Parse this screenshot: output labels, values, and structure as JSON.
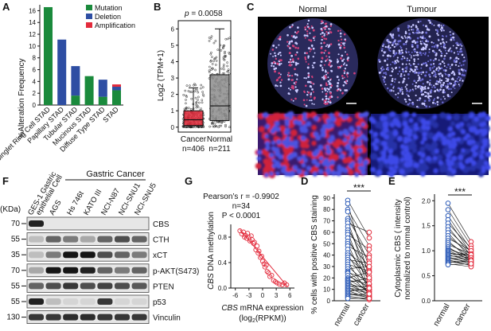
{
  "panels": {
    "A": {
      "letter": "A",
      "ylabel": "%Alteration Frequency",
      "yticks": [
        "0",
        "2",
        "4",
        "6",
        "8",
        "10",
        "12",
        "14",
        "16"
      ],
      "legend": [
        {
          "label": "Mutation",
          "color": "#1a8a3c"
        },
        {
          "label": "Deletion",
          "color": "#2e4ea3"
        },
        {
          "label": "Amplification",
          "color": "#e32b3c"
        }
      ]
    },
    "B": {
      "letter": "B",
      "pvalue_prefix": "p",
      "pvalue_rest": " = 0.0058",
      "ylabel": "Log2 (TPM+1)",
      "yticks": [
        "0",
        "1",
        "2",
        "3",
        "4",
        "5",
        "6"
      ],
      "groups": [
        {
          "label": "Cancer",
          "n": "n=406",
          "color": "#e32b3c"
        },
        {
          "label": "Normal",
          "n": "n=211",
          "color": "#8c8c8c"
        }
      ]
    },
    "C": {
      "letter": "C",
      "columns": [
        "Normal",
        "Tumour"
      ]
    },
    "F": {
      "letter": "F",
      "kda_label": "(KDa)",
      "header_group": "Gastric Cancer",
      "lanes": [
        "GES-1 Gastric epithelial Cell",
        "AGS",
        "Hs 746t",
        "KATO III",
        "NCI-N87",
        "NCI-SNU1",
        "NCI-SNU5"
      ],
      "blots": [
        {
          "kda": "70",
          "label": "CBS"
        },
        {
          "kda": "55",
          "label": "CTH"
        },
        {
          "kda": "35",
          "label": "xCT"
        },
        {
          "kda": "70",
          "label": "p-AKT(S473)"
        },
        {
          "kda": "55",
          "label": "PTEN"
        },
        {
          "kda": "55",
          "label": "p53"
        },
        {
          "kda": "130",
          "label": "Vinculin"
        }
      ]
    },
    "G": {
      "letter": "G",
      "stat_r": "Pearson’s r = -0.9902",
      "stat_n": "n=34",
      "stat_p": "P < 0.0001",
      "ylabel_gene": "CBS",
      "ylabel_rest": " DNA methylation",
      "xlabel_gene": "CBS",
      "xlabel_rest": " mRNA expression",
      "xlabel_unit": "(log",
      "xlabel_unit_sub": "2",
      "xlabel_unit_end": "(RPKM))",
      "xticks": [
        "-6",
        "-3",
        "0",
        "3",
        "6"
      ],
      "yticks": [
        "0.0",
        "0.4",
        "0.8"
      ],
      "color": "#e32b3c"
    },
    "D": {
      "letter": "D",
      "ylabel": "% cells with positive CBS staining",
      "yticks": [
        "0",
        "10",
        "20",
        "30",
        "40",
        "50",
        "60",
        "70",
        "80",
        "90"
      ],
      "xticks": [
        "normal",
        "cancer"
      ],
      "sig": "***"
    },
    "E": {
      "letter": "E",
      "ylabel_1": "Cytoplasmic CBS ( intensity",
      "ylabel_2": "normalized to normal control)",
      "yticks": [
        "0.0",
        "0.5",
        "1.0",
        "1.5",
        "2.0"
      ],
      "xticks": [
        "normal",
        "cancer"
      ],
      "sig": "***"
    }
  },
  "chart_data": [
    {
      "type": "bar",
      "panel": "A",
      "categories": [
        "Singlet Ring Cell STAD",
        "Papillary STAD",
        "Tubular STAD",
        "Mucinous STAD",
        "Diffuse Type STAD",
        "STAD"
      ],
      "series": [
        {
          "name": "Mutation",
          "values": [
            16.6,
            0,
            1.6,
            4.9,
            1.4,
            2.5
          ]
        },
        {
          "name": "Deletion",
          "values": [
            0,
            11.1,
            5.0,
            0,
            2.9,
            0.6
          ]
        },
        {
          "name": "Amplification",
          "values": [
            0,
            0,
            0,
            0,
            0,
            0.4
          ]
        }
      ],
      "ylabel": "%Alteration Frequency",
      "ylim": [
        0,
        17
      ]
    },
    {
      "type": "box",
      "panel": "B",
      "categories": [
        "Cancer",
        "Normal"
      ],
      "series": [
        {
          "name": "Cancer",
          "min": 0,
          "q1": 0.1,
          "median": 0.45,
          "q3": 1.0,
          "max": 2.4
        },
        {
          "name": "Normal",
          "min": 0,
          "q1": 0.4,
          "median": 1.3,
          "q3": 3.2,
          "max": 6.0
        }
      ],
      "ylabel": "Log2 (TPM+1)",
      "ylim": [
        -0.3,
        6.5
      ]
    },
    {
      "type": "scatter",
      "panel": "G",
      "x": [
        -5.0,
        -4.6,
        -4.2,
        -4.0,
        -3.8,
        -3.5,
        -3.3,
        -3.0,
        -2.8,
        -2.5,
        -2.3,
        -2.0,
        -1.8,
        -1.5,
        -1.2,
        -1.0,
        -0.8,
        -0.5,
        -0.2,
        0.0,
        0.3,
        0.5,
        0.8,
        1.0,
        1.3,
        1.6,
        2.0,
        2.4,
        2.8,
        3.2,
        3.7,
        4.3,
        4.8,
        5.3
      ],
      "y": [
        0.9,
        0.85,
        0.88,
        0.8,
        0.83,
        0.78,
        0.86,
        0.8,
        0.74,
        0.82,
        0.76,
        0.7,
        0.72,
        0.6,
        0.66,
        0.55,
        0.58,
        0.48,
        0.5,
        0.42,
        0.38,
        0.33,
        0.36,
        0.26,
        0.24,
        0.18,
        0.2,
        0.12,
        0.1,
        0.08,
        0.06,
        0.05,
        0.08,
        0.05
      ],
      "fit": {
        "x": [
          -5,
          5.5
        ],
        "y": [
          0.92,
          0.02
        ]
      },
      "xlim": [
        -7,
        7
      ],
      "ylim": [
        0,
        1.0
      ]
    },
    {
      "type": "paired",
      "panel": "D",
      "categories": [
        "normal",
        "cancer"
      ],
      "pairs": [
        [
          88,
          55
        ],
        [
          85,
          20
        ],
        [
          80,
          48
        ],
        [
          78,
          30
        ],
        [
          72,
          40
        ],
        [
          70,
          15
        ],
        [
          68,
          60
        ],
        [
          65,
          25
        ],
        [
          62,
          35
        ],
        [
          60,
          10
        ],
        [
          58,
          45
        ],
        [
          55,
          20
        ],
        [
          52,
          30
        ],
        [
          50,
          8
        ],
        [
          48,
          38
        ],
        [
          45,
          18
        ],
        [
          42,
          28
        ],
        [
          40,
          12
        ],
        [
          38,
          22
        ],
        [
          36,
          33
        ],
        [
          34,
          5
        ],
        [
          32,
          26
        ],
        [
          30,
          14
        ],
        [
          28,
          30
        ],
        [
          26,
          10
        ],
        [
          25,
          18
        ],
        [
          24,
          6
        ],
        [
          22,
          12
        ],
        [
          20,
          25
        ],
        [
          19,
          8
        ],
        [
          18,
          15
        ],
        [
          17,
          4
        ],
        [
          16,
          20
        ],
        [
          15,
          10
        ],
        [
          14,
          6
        ],
        [
          13,
          12
        ],
        [
          12,
          3
        ],
        [
          11,
          9
        ],
        [
          10,
          7
        ],
        [
          9,
          2
        ],
        [
          8,
          11
        ],
        [
          7,
          4
        ],
        [
          6,
          3
        ],
        [
          5,
          6
        ],
        [
          4,
          2
        ],
        [
          3,
          1
        ],
        [
          2,
          2
        ]
      ],
      "ylim": [
        0,
        92
      ]
    },
    {
      "type": "paired",
      "panel": "E",
      "categories": [
        "normal",
        "cancer"
      ],
      "pairs": [
        [
          1.95,
          1.18
        ],
        [
          1.82,
          1.1
        ],
        [
          1.7,
          1.02
        ],
        [
          1.62,
          0.95
        ],
        [
          1.55,
          1.05
        ],
        [
          1.48,
          0.9
        ],
        [
          1.42,
          0.98
        ],
        [
          1.36,
          0.85
        ],
        [
          1.3,
          0.92
        ],
        [
          1.25,
          1.0
        ],
        [
          1.2,
          0.8
        ],
        [
          1.16,
          0.88
        ],
        [
          1.12,
          0.94
        ],
        [
          1.08,
          0.78
        ],
        [
          1.05,
          0.86
        ],
        [
          1.02,
          0.9
        ],
        [
          1.0,
          0.82
        ],
        [
          0.98,
          0.76
        ],
        [
          0.96,
          0.88
        ],
        [
          0.94,
          0.92
        ],
        [
          0.92,
          0.8
        ],
        [
          0.9,
          0.86
        ],
        [
          0.88,
          0.74
        ],
        [
          0.86,
          0.82
        ],
        [
          0.84,
          0.78
        ],
        [
          0.82,
          0.7
        ],
        [
          0.8,
          0.76
        ],
        [
          0.78,
          0.72
        ],
        [
          0.76,
          0.8
        ],
        [
          0.74,
          0.68
        ],
        [
          0.72,
          0.74
        ]
      ],
      "ylim": [
        0,
        2.1
      ]
    }
  ]
}
